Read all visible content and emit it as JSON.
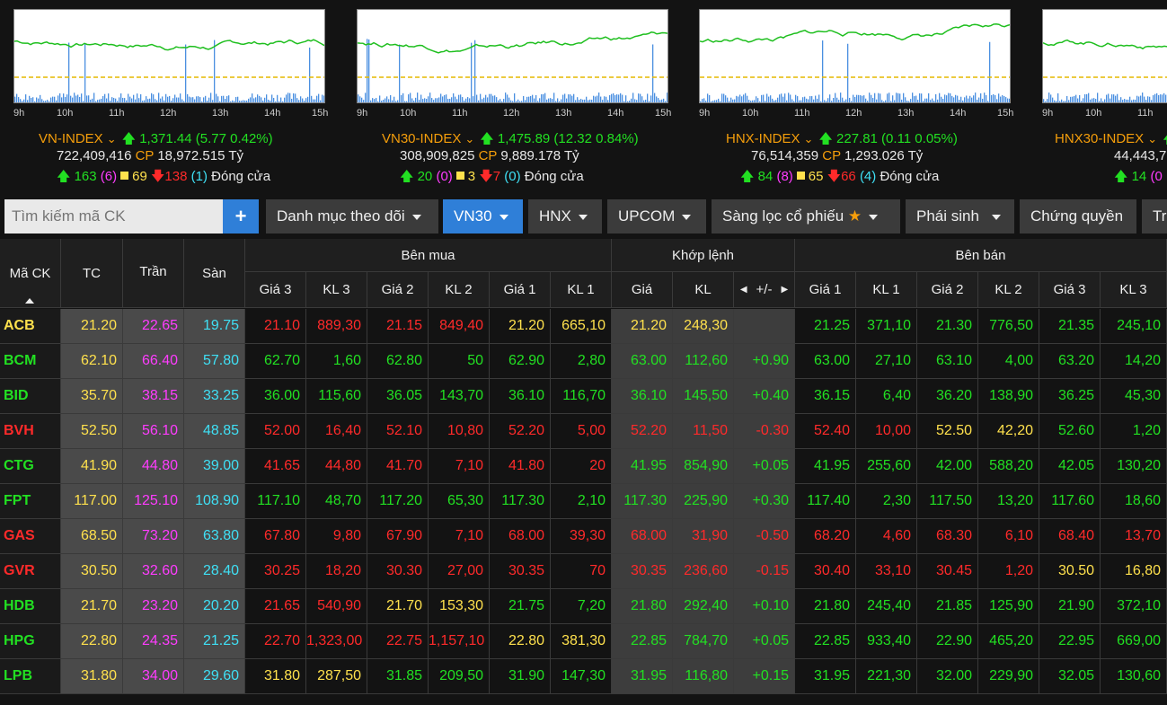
{
  "colors": {
    "up": "#22e022",
    "down": "#ff2a2a",
    "ref": "#ffe14d",
    "ceil": "#ff3cff",
    "floor": "#3fe0f5",
    "accent": "#2f7fd8"
  },
  "hours": [
    "9h",
    "10h",
    "11h",
    "12h",
    "13h",
    "14h",
    "15h"
  ],
  "indices": [
    {
      "name": "VN-INDEX",
      "change": "1,371.44 (5.77 0.42%)",
      "vol": "722,409,416",
      "cp": "CP",
      "val": "18,972.515 Tỷ",
      "up": "163",
      "ceil": "(6)",
      "ref": "69",
      "down": "138",
      "floor": "(1)",
      "status": "Đóng cửa"
    },
    {
      "name": "VN30-INDEX",
      "change": "1,475.89 (12.32 0.84%)",
      "vol": "308,909,825",
      "cp": "CP",
      "val": "9,889.178 Tỷ",
      "up": "20",
      "ceil": "(0)",
      "ref": "3",
      "down": "7",
      "floor": "(0)",
      "status": "Đóng cửa"
    },
    {
      "name": "HNX-INDEX",
      "change": "227.81 (0.11 0.05%)",
      "vol": "76,514,359",
      "cp": "CP",
      "val": "1,293.026 Tỷ",
      "up": "84",
      "ceil": "(8)",
      "ref": "65",
      "down": "66",
      "floor": "(4)",
      "status": "Đóng cửa"
    },
    {
      "name": "HNX30-INDEX",
      "change": "",
      "vol": "44,443,7",
      "cp": "",
      "val": "",
      "up": "14",
      "ceil": "(0",
      "ref": "",
      "down": "",
      "floor": "",
      "status": ""
    }
  ],
  "toolbar": {
    "search_placeholder": "Tìm kiếm mã CK",
    "plus": "+",
    "watchlist": "Danh mục theo dõi",
    "vn30": "VN30",
    "hnx": "HNX",
    "upcom": "UPCOM",
    "filter": "Sàng lọc cổ phiếu",
    "star": "★",
    "derivatives": "Phái sinh",
    "warrants": "Chứng quyền",
    "more": "Tr"
  },
  "headers": {
    "symbol": "Mã CK",
    "ref": "TC",
    "ceil": "Trần",
    "floor": "Sàn",
    "buy": "Bên mua",
    "match": "Khớp lệnh",
    "sell": "Bên bán",
    "buy_cols": [
      "Giá 3",
      "KL 3",
      "Giá 2",
      "KL 2",
      "Giá 1",
      "KL 1"
    ],
    "match_cols": [
      "Giá",
      "KL",
      "+/-"
    ],
    "sell_cols": [
      "Giá 1",
      "KL 1",
      "Giá 2",
      "KL 2",
      "Giá 3",
      "KL 3"
    ]
  },
  "rows": [
    {
      "s": "ACB",
      "sc": "y",
      "tc": "21.20",
      "tr": "22.65",
      "sa": "19.75",
      "b": [
        [
          "21.10",
          "d"
        ],
        [
          "889,30",
          "d"
        ],
        [
          "21.15",
          "d"
        ],
        [
          "849,40",
          "d"
        ],
        [
          "21.20",
          "y"
        ],
        [
          "665,10",
          "y"
        ]
      ],
      "m": [
        [
          "21.20",
          "y"
        ],
        [
          "248,30",
          "y"
        ],
        [
          "",
          ""
        ]
      ],
      "a": [
        [
          "21.25",
          "u"
        ],
        [
          "371,10",
          "u"
        ],
        [
          "21.30",
          "u"
        ],
        [
          "776,50",
          "u"
        ],
        [
          "21.35",
          "u"
        ],
        [
          "245,10",
          "u"
        ]
      ]
    },
    {
      "s": "BCM",
      "sc": "u",
      "tc": "62.10",
      "tr": "66.40",
      "sa": "57.80",
      "b": [
        [
          "62.70",
          "u"
        ],
        [
          "1,60",
          "u"
        ],
        [
          "62.80",
          "u"
        ],
        [
          "50",
          "u"
        ],
        [
          "62.90",
          "u"
        ],
        [
          "2,80",
          "u"
        ]
      ],
      "m": [
        [
          "63.00",
          "u"
        ],
        [
          "112,60",
          "u"
        ],
        [
          "+0.90",
          "u"
        ]
      ],
      "a": [
        [
          "63.00",
          "u"
        ],
        [
          "27,10",
          "u"
        ],
        [
          "63.10",
          "u"
        ],
        [
          "4,00",
          "u"
        ],
        [
          "63.20",
          "u"
        ],
        [
          "14,20",
          "u"
        ]
      ]
    },
    {
      "s": "BID",
      "sc": "u",
      "tc": "35.70",
      "tr": "38.15",
      "sa": "33.25",
      "b": [
        [
          "36.00",
          "u"
        ],
        [
          "115,60",
          "u"
        ],
        [
          "36.05",
          "u"
        ],
        [
          "143,70",
          "u"
        ],
        [
          "36.10",
          "u"
        ],
        [
          "116,70",
          "u"
        ]
      ],
      "m": [
        [
          "36.10",
          "u"
        ],
        [
          "145,50",
          "u"
        ],
        [
          "+0.40",
          "u"
        ]
      ],
      "a": [
        [
          "36.15",
          "u"
        ],
        [
          "6,40",
          "u"
        ],
        [
          "36.20",
          "u"
        ],
        [
          "138,90",
          "u"
        ],
        [
          "36.25",
          "u"
        ],
        [
          "45,30",
          "u"
        ]
      ]
    },
    {
      "s": "BVH",
      "sc": "d",
      "tc": "52.50",
      "tr": "56.10",
      "sa": "48.85",
      "b": [
        [
          "52.00",
          "d"
        ],
        [
          "16,40",
          "d"
        ],
        [
          "52.10",
          "d"
        ],
        [
          "10,80",
          "d"
        ],
        [
          "52.20",
          "d"
        ],
        [
          "5,00",
          "d"
        ]
      ],
      "m": [
        [
          "52.20",
          "d"
        ],
        [
          "11,50",
          "d"
        ],
        [
          "-0.30",
          "d"
        ]
      ],
      "a": [
        [
          "52.40",
          "d"
        ],
        [
          "10,00",
          "d"
        ],
        [
          "52.50",
          "y"
        ],
        [
          "42,20",
          "y"
        ],
        [
          "52.60",
          "u"
        ],
        [
          "1,20",
          "u"
        ]
      ]
    },
    {
      "s": "CTG",
      "sc": "u",
      "tc": "41.90",
      "tr": "44.80",
      "sa": "39.00",
      "b": [
        [
          "41.65",
          "d"
        ],
        [
          "44,80",
          "d"
        ],
        [
          "41.70",
          "d"
        ],
        [
          "7,10",
          "d"
        ],
        [
          "41.80",
          "d"
        ],
        [
          "20",
          "d"
        ]
      ],
      "m": [
        [
          "41.95",
          "u"
        ],
        [
          "854,90",
          "u"
        ],
        [
          "+0.05",
          "u"
        ]
      ],
      "a": [
        [
          "41.95",
          "u"
        ],
        [
          "255,60",
          "u"
        ],
        [
          "42.00",
          "u"
        ],
        [
          "588,20",
          "u"
        ],
        [
          "42.05",
          "u"
        ],
        [
          "130,20",
          "u"
        ]
      ]
    },
    {
      "s": "FPT",
      "sc": "u",
      "tc": "117.00",
      "tr": "125.10",
      "sa": "108.90",
      "b": [
        [
          "117.10",
          "u"
        ],
        [
          "48,70",
          "u"
        ],
        [
          "117.20",
          "u"
        ],
        [
          "65,30",
          "u"
        ],
        [
          "117.30",
          "u"
        ],
        [
          "2,10",
          "u"
        ]
      ],
      "m": [
        [
          "117.30",
          "u"
        ],
        [
          "225,90",
          "u"
        ],
        [
          "+0.30",
          "u"
        ]
      ],
      "a": [
        [
          "117.40",
          "u"
        ],
        [
          "2,30",
          "u"
        ],
        [
          "117.50",
          "u"
        ],
        [
          "13,20",
          "u"
        ],
        [
          "117.60",
          "u"
        ],
        [
          "18,60",
          "u"
        ]
      ]
    },
    {
      "s": "GAS",
      "sc": "d",
      "tc": "68.50",
      "tr": "73.20",
      "sa": "63.80",
      "b": [
        [
          "67.80",
          "d"
        ],
        [
          "9,80",
          "d"
        ],
        [
          "67.90",
          "d"
        ],
        [
          "7,10",
          "d"
        ],
        [
          "68.00",
          "d"
        ],
        [
          "39,30",
          "d"
        ]
      ],
      "m": [
        [
          "68.00",
          "d"
        ],
        [
          "31,90",
          "d"
        ],
        [
          "-0.50",
          "d"
        ]
      ],
      "a": [
        [
          "68.20",
          "d"
        ],
        [
          "4,60",
          "d"
        ],
        [
          "68.30",
          "d"
        ],
        [
          "6,10",
          "d"
        ],
        [
          "68.40",
          "d"
        ],
        [
          "13,70",
          "d"
        ]
      ]
    },
    {
      "s": "GVR",
      "sc": "d",
      "tc": "30.50",
      "tr": "32.60",
      "sa": "28.40",
      "b": [
        [
          "30.25",
          "d"
        ],
        [
          "18,20",
          "d"
        ],
        [
          "30.30",
          "d"
        ],
        [
          "27,00",
          "d"
        ],
        [
          "30.35",
          "d"
        ],
        [
          "70",
          "d"
        ]
      ],
      "m": [
        [
          "30.35",
          "d"
        ],
        [
          "236,60",
          "d"
        ],
        [
          "-0.15",
          "d"
        ]
      ],
      "a": [
        [
          "30.40",
          "d"
        ],
        [
          "33,10",
          "d"
        ],
        [
          "30.45",
          "d"
        ],
        [
          "1,20",
          "d"
        ],
        [
          "30.50",
          "y"
        ],
        [
          "16,80",
          "y"
        ]
      ]
    },
    {
      "s": "HDB",
      "sc": "u",
      "tc": "21.70",
      "tr": "23.20",
      "sa": "20.20",
      "b": [
        [
          "21.65",
          "d"
        ],
        [
          "540,90",
          "d"
        ],
        [
          "21.70",
          "y"
        ],
        [
          "153,30",
          "y"
        ],
        [
          "21.75",
          "u"
        ],
        [
          "7,20",
          "u"
        ]
      ],
      "m": [
        [
          "21.80",
          "u"
        ],
        [
          "292,40",
          "u"
        ],
        [
          "+0.10",
          "u"
        ]
      ],
      "a": [
        [
          "21.80",
          "u"
        ],
        [
          "245,40",
          "u"
        ],
        [
          "21.85",
          "u"
        ],
        [
          "125,90",
          "u"
        ],
        [
          "21.90",
          "u"
        ],
        [
          "372,10",
          "u"
        ]
      ]
    },
    {
      "s": "HPG",
      "sc": "u",
      "tc": "22.80",
      "tr": "24.35",
      "sa": "21.25",
      "b": [
        [
          "22.70",
          "d"
        ],
        [
          "1,323,00",
          "d"
        ],
        [
          "22.75",
          "d"
        ],
        [
          "1,157,10",
          "d"
        ],
        [
          "22.80",
          "y"
        ],
        [
          "381,30",
          "y"
        ]
      ],
      "m": [
        [
          "22.85",
          "u"
        ],
        [
          "784,70",
          "u"
        ],
        [
          "+0.05",
          "u"
        ]
      ],
      "a": [
        [
          "22.85",
          "u"
        ],
        [
          "933,40",
          "u"
        ],
        [
          "22.90",
          "u"
        ],
        [
          "465,20",
          "u"
        ],
        [
          "22.95",
          "u"
        ],
        [
          "669,00",
          "u"
        ]
      ]
    },
    {
      "s": "LPB",
      "sc": "u",
      "tc": "31.80",
      "tr": "34.00",
      "sa": "29.60",
      "b": [
        [
          "31.80",
          "y"
        ],
        [
          "287,50",
          "y"
        ],
        [
          "31.85",
          "u"
        ],
        [
          "209,50",
          "u"
        ],
        [
          "31.90",
          "u"
        ],
        [
          "147,30",
          "u"
        ]
      ],
      "m": [
        [
          "31.95",
          "u"
        ],
        [
          "116,80",
          "u"
        ],
        [
          "+0.15",
          "u"
        ]
      ],
      "a": [
        [
          "31.95",
          "u"
        ],
        [
          "221,30",
          "u"
        ],
        [
          "32.00",
          "u"
        ],
        [
          "229,90",
          "u"
        ],
        [
          "32.05",
          "u"
        ],
        [
          "130,60",
          "u"
        ]
      ]
    }
  ]
}
